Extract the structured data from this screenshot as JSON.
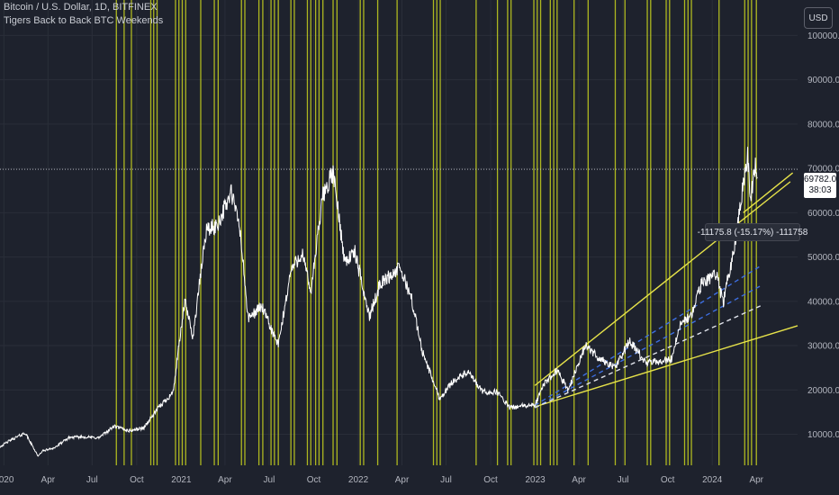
{
  "header": {
    "title": "Bitcoin / U.S. Dollar, 1D, BITFINEX",
    "indicator": "Tigers Back to Back BTC Weekends"
  },
  "currency_button": {
    "label": "USD"
  },
  "price_badge": {
    "price": "69782.0",
    "countdown": "38:03"
  },
  "measure_label": {
    "text": "-11175.8 (-15.17%) -111758"
  },
  "colors": {
    "background": "#1e222d",
    "grid": "#2a2e39",
    "price_line": "#ffffff",
    "vertical_bands": "#c7d21e",
    "trendlines": "#e6e24a",
    "dashed_blue": "#3d6ee0",
    "dashed_white": "#e0e3eb"
  },
  "chart_data": {
    "type": "line",
    "title": "Bitcoin / U.S. Dollar, 1D, BITFINEX",
    "xlabel": "",
    "ylabel": "",
    "x_ticks": [
      "2020",
      "Apr",
      "Jul",
      "Oct",
      "2021",
      "Apr",
      "Jul",
      "Oct",
      "2022",
      "Apr",
      "Jul",
      "Oct",
      "2023",
      "Apr",
      "Jul",
      "Oct",
      "2024",
      "Apr"
    ],
    "y_ticks": [
      "10000.0",
      "20000.0",
      "30000.0",
      "40000.0",
      "50000.0",
      "60000.0",
      "70000.0",
      "80000.0",
      "90000.0",
      "100000.0"
    ],
    "ylim": [
      3000,
      108000
    ],
    "xlim": [
      "2019-12-24",
      "2024-06-25"
    ],
    "grid": true,
    "current_price": 69782.0,
    "series": [
      {
        "type": "line",
        "x": [
          "2019-12-24",
          "2020-01-15",
          "2020-02-14",
          "2020-03-12",
          "2020-03-20",
          "2020-04-15",
          "2020-05-15",
          "2020-06-15",
          "2020-07-15",
          "2020-08-15",
          "2020-09-15",
          "2020-10-15",
          "2020-11-15",
          "2020-12-15",
          "2021-01-08",
          "2021-01-25",
          "2021-02-21",
          "2021-03-15",
          "2021-04-14",
          "2021-05-01",
          "2021-05-19",
          "2021-06-15",
          "2021-07-20",
          "2021-08-15",
          "2021-09-07",
          "2021-09-25",
          "2021-10-20",
          "2021-11-10",
          "2021-12-04",
          "2021-12-25",
          "2022-01-24",
          "2022-02-15",
          "2022-03-28",
          "2022-04-20",
          "2022-05-12",
          "2022-06-18",
          "2022-07-15",
          "2022-08-15",
          "2022-09-15",
          "2022-10-15",
          "2022-11-09",
          "2022-12-15",
          "2022-12-31",
          "2023-01-20",
          "2023-02-15",
          "2023-03-10",
          "2023-04-14",
          "2023-05-15",
          "2023-06-15",
          "2023-07-14",
          "2023-08-18",
          "2023-09-15",
          "2023-10-10",
          "2023-10-25",
          "2023-11-20",
          "2023-12-10",
          "2024-01-10",
          "2024-01-23",
          "2024-02-15",
          "2024-03-05",
          "2024-03-14",
          "2024-03-20",
          "2024-03-28",
          "2024-04-03"
        ],
        "y": [
          7200,
          8700,
          10300,
          5000,
          6200,
          7000,
          9300,
          9400,
          9200,
          11800,
          10800,
          11400,
          16000,
          19500,
          40000,
          32000,
          56000,
          57000,
          64500,
          57000,
          36000,
          39000,
          30000,
          47000,
          51000,
          42000,
          64000,
          69000,
          49000,
          51000,
          36500,
          44000,
          47500,
          41000,
          29000,
          18000,
          22000,
          24000,
          19500,
          19500,
          16000,
          16500,
          16500,
          21500,
          24500,
          20000,
          30000,
          27000,
          25000,
          31000,
          26000,
          26500,
          27000,
          34500,
          37000,
          44000,
          46500,
          39500,
          52000,
          67000,
          73500,
          62000,
          71000,
          68000
        ]
      }
    ],
    "trendlines": [
      {
        "style": "solid",
        "x": [
          "2022-12-31",
          "2024-06-10"
        ],
        "y": [
          21000,
          67000
        ]
      },
      {
        "style": "solid",
        "x": [
          "2022-12-31",
          "2024-06-25"
        ],
        "y": [
          16200,
          34500
        ]
      },
      {
        "style": "solid",
        "x": [
          "2024-03-05",
          "2024-06-15"
        ],
        "y": [
          60000,
          69000
        ]
      },
      {
        "style": "dashed",
        "color": "blue",
        "x": [
          "2022-12-31",
          "2024-04-10"
        ],
        "y": [
          16500,
          48000
        ]
      },
      {
        "style": "dashed",
        "color": "blue",
        "x": [
          "2022-12-31",
          "2024-04-10"
        ],
        "y": [
          16000,
          43500
        ]
      },
      {
        "style": "dashed",
        "color": "white",
        "x": [
          "2022-12-31",
          "2024-04-10"
        ],
        "y": [
          16000,
          39000
        ]
      }
    ],
    "vertical_markers": [
      "2020-08-20",
      "2020-09-05",
      "2020-09-20",
      "2020-10-30",
      "2020-11-05",
      "2020-11-12",
      "2020-12-20",
      "2020-12-27",
      "2021-01-03",
      "2021-01-10",
      "2021-02-10",
      "2021-03-10",
      "2021-03-18",
      "2021-05-05",
      "2021-05-12",
      "2021-06-10",
      "2021-06-18",
      "2021-07-05",
      "2021-07-12",
      "2021-07-20",
      "2021-08-15",
      "2021-08-22",
      "2021-09-18",
      "2021-09-25",
      "2021-10-05",
      "2021-10-12",
      "2021-10-20",
      "2021-11-10",
      "2021-11-18",
      "2022-01-05",
      "2022-01-12",
      "2022-02-10",
      "2022-03-22",
      "2022-06-05",
      "2022-06-12",
      "2022-06-19",
      "2022-09-01",
      "2022-10-15",
      "2022-11-05",
      "2022-11-12",
      "2022-12-29",
      "2023-01-05",
      "2023-01-12",
      "2023-02-01",
      "2023-02-08",
      "2023-02-15",
      "2023-03-22",
      "2023-04-20",
      "2023-06-15",
      "2023-07-05",
      "2023-08-20",
      "2023-08-27",
      "2023-09-28",
      "2023-10-05",
      "2023-11-05",
      "2023-11-12",
      "2023-11-19",
      "2024-01-15",
      "2024-03-08",
      "2024-03-15",
      "2024-03-22",
      "2024-04-01"
    ]
  }
}
